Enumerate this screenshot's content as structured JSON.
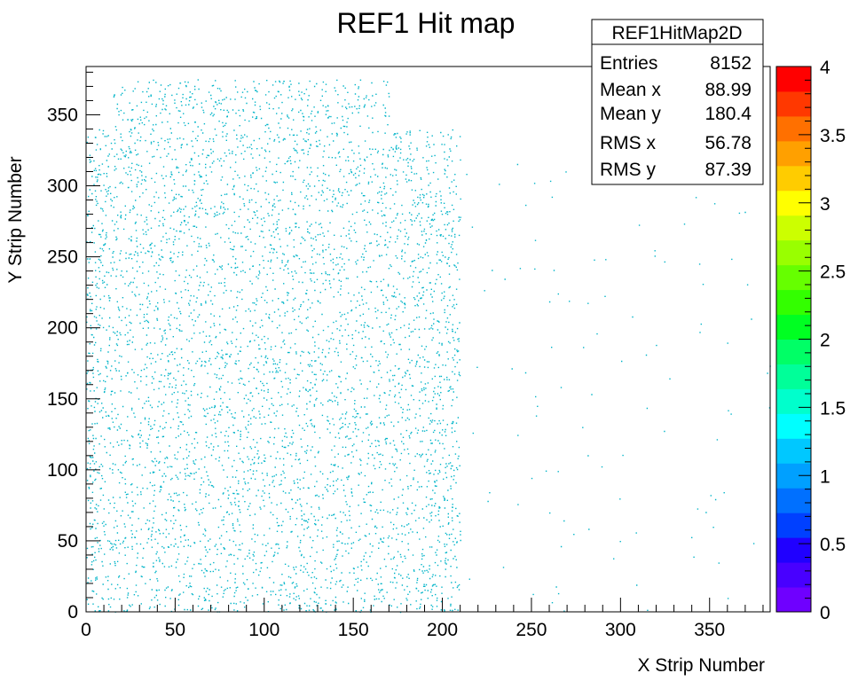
{
  "chart_data": {
    "type": "heatmap",
    "title": "REF1 Hit map",
    "xlabel": "X Strip Number",
    "ylabel": "Y Strip Number",
    "xlim": [
      0,
      384
    ],
    "ylim": [
      0,
      384
    ],
    "x_ticks": [
      0,
      50,
      100,
      150,
      200,
      250,
      300,
      350
    ],
    "y_ticks": [
      0,
      50,
      100,
      150,
      200,
      250,
      300,
      350
    ],
    "zlim": [
      0,
      4
    ],
    "z_ticks": [
      "0",
      "0.5",
      "1",
      "1.5",
      "2",
      "2.5",
      "3",
      "3.5",
      "4"
    ],
    "hit_color": "#00b4c8",
    "dominant_bin_content": 1,
    "hit_region": {
      "dense_x_range": [
        0,
        210
      ],
      "sparse_x_range": [
        210,
        384
      ],
      "y_range": [
        0,
        375
      ]
    },
    "grid": false,
    "stats": {
      "name": "REF1HitMap2D",
      "rows": [
        {
          "label": "Entries",
          "value": "8152"
        },
        {
          "label": "Mean x",
          "value": "88.99"
        },
        {
          "label": "Mean y",
          "value": "180.4"
        },
        {
          "label": "RMS x",
          "value": "56.78"
        },
        {
          "label": "RMS y",
          "value": "87.39"
        }
      ]
    },
    "palette": [
      "#6f00ff",
      "#4800ff",
      "#2000ff",
      "#0040ff",
      "#0070ff",
      "#00a0ff",
      "#00c8ff",
      "#00ffff",
      "#00ffcc",
      "#00ff99",
      "#00ff66",
      "#00ff22",
      "#33ff00",
      "#66ff00",
      "#99ff00",
      "#ccff00",
      "#ffff00",
      "#ffcc00",
      "#ffa000",
      "#ff7000",
      "#ff3800",
      "#ff0000"
    ]
  }
}
